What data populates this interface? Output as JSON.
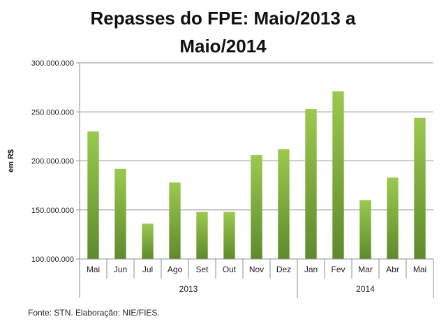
{
  "chart_data": {
    "type": "bar",
    "title_lines": [
      "Repasses do FPE: Maio/2013 a",
      "Maio/2014"
    ],
    "ylabel": "em R$",
    "xlabel": "",
    "ylim": [
      100000000,
      300000000
    ],
    "yticks": [
      100000000,
      150000000,
      200000000,
      250000000,
      300000000
    ],
    "ytick_labels": [
      "100.000.000",
      "150.000.000",
      "200.000.000",
      "250.000.000",
      "300.000.000"
    ],
    "grid": true,
    "legend": "none",
    "bar_color_top": "#9bc94e",
    "bar_color_bottom": "#5f8a2c",
    "categories": [
      "Mai",
      "Jun",
      "Jul",
      "Ago",
      "Set",
      "Out",
      "Nov",
      "Dez",
      "Jan",
      "Fev",
      "Mar",
      "Abr",
      "Mai"
    ],
    "values": [
      230000000,
      192000000,
      136000000,
      178000000,
      148000000,
      148000000,
      206000000,
      212000000,
      253000000,
      271000000,
      160000000,
      183000000,
      244000000
    ],
    "groups": [
      {
        "label": "2013",
        "start": 0,
        "end": 7
      },
      {
        "label": "2014",
        "start": 8,
        "end": 12
      }
    ]
  },
  "source": "Fonte: STN. Elaboração: NIE/FIES."
}
